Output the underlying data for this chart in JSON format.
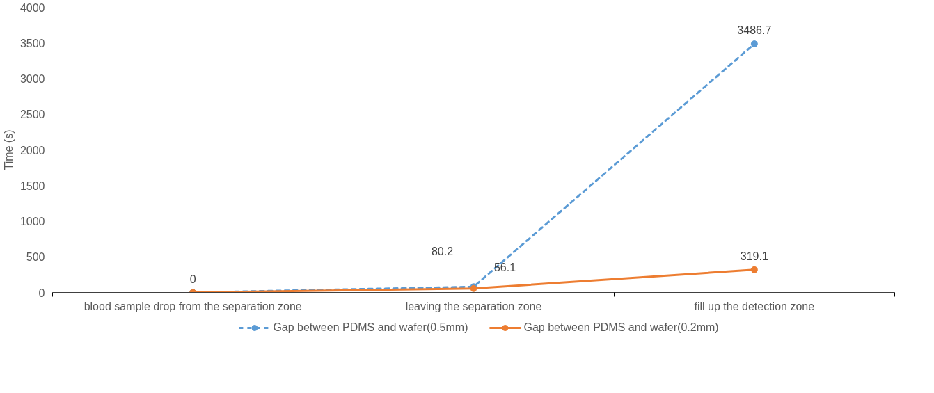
{
  "chart_data": {
    "type": "line",
    "ylabel": "Time (s)",
    "categories": [
      "blood sample drop from the separation zone",
      "leaving the separation zone",
      "fill up the detection zone"
    ],
    "series": [
      {
        "name": "Gap between PDMS and wafer(0.5mm)",
        "color": "#5b9bd5",
        "values": [
          0,
          80.2,
          3486.7
        ],
        "line_style": "dashed",
        "value_labels": [
          "0",
          "80.2",
          "3486.7"
        ]
      },
      {
        "name": "Gap between PDMS and wafer(0.2mm)",
        "color": "#ed7d31",
        "values": [
          0,
          56.1,
          319.1
        ],
        "line_style": "solid",
        "value_labels": [
          null,
          "56.1",
          "319.1"
        ]
      }
    ],
    "ylim": [
      0,
      4000
    ],
    "yticks": [
      0,
      500,
      1000,
      1500,
      2000,
      2500,
      3000,
      3500,
      4000
    ],
    "marker": "circle",
    "grid": false,
    "legend": "bottom"
  }
}
